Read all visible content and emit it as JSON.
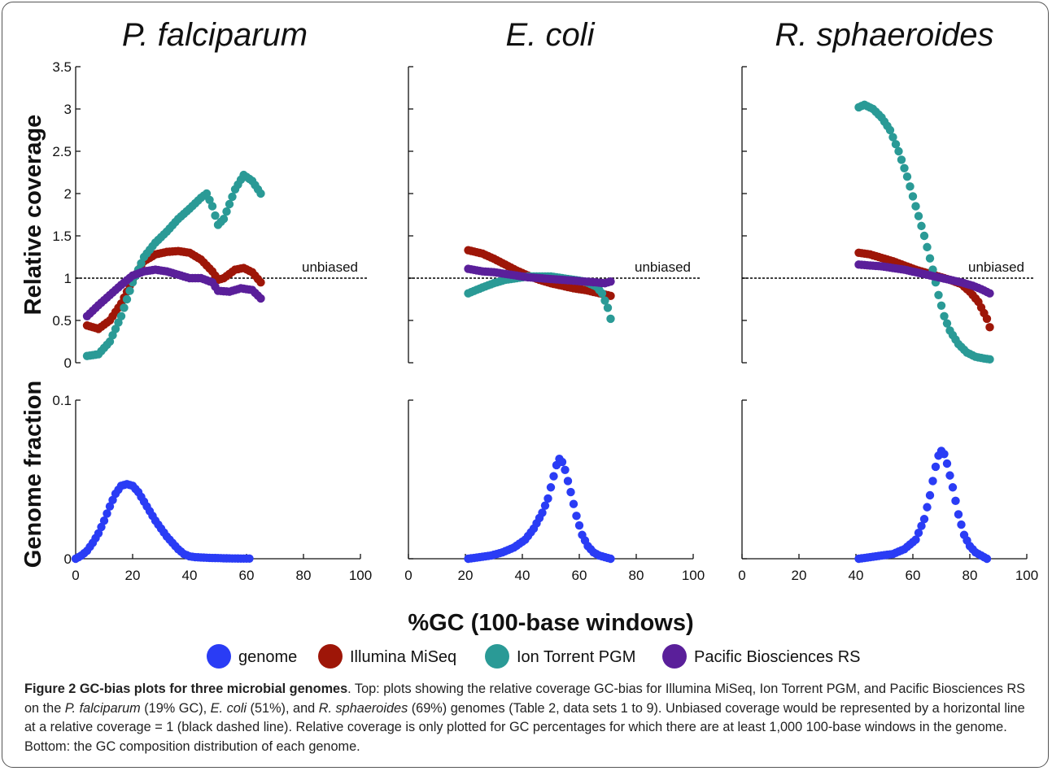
{
  "figure": {
    "panel_titles": [
      "P. falciparum",
      "E. coli",
      "R. sphaeroides"
    ],
    "xlabel": "%GC (100-base windows)",
    "top_ylabel": "Relative coverage",
    "bottom_ylabel": "Genome fraction",
    "unbiased_label": "unbiased",
    "top_yticks": [
      "0",
      "0.5",
      "1",
      "1.5",
      "2",
      "2.5",
      "3",
      "3.5"
    ],
    "bottom_yticks": [
      "0",
      "0.1"
    ],
    "xticks": [
      "0",
      "20",
      "40",
      "60",
      "80",
      "100"
    ],
    "legend": [
      "genome",
      "Illumina MiSeq",
      "Ion Torrent PGM",
      "Pacific Biosciences RS"
    ],
    "colors": {
      "genome": "#2a3cf5",
      "Illumina MiSeq": "#9e1608",
      "Ion Torrent PGM": "#2a9a96",
      "Pacific Biosciences RS": "#5a1f9a",
      "unbiased": "#000000"
    }
  },
  "caption": {
    "title": "Figure 2 GC-bias plots for three microbial genomes",
    "p1": ". Top: plots showing the relative coverage GC-bias for Illumina MiSeq, Ion Torrent PGM, and Pacific Biosciences RS on the ",
    "g1": "P. falciparum",
    "p2": " (19% GC), ",
    "g2": "E. coli",
    "p3": " (51%), and ",
    "g3": "R. sphaeroides",
    "p4": " (69%) genomes (Table 2, data sets 1 to 9). Unbiased coverage would be represented by a horizontal line at a relative coverage = 1 (black dashed line). Relative coverage is only plotted for GC percentages for which there are at least 1,000 100-base windows in the genome. Bottom: the GC composition distribution of each genome."
  },
  "chart_data": [
    {
      "type": "scatter",
      "title": "P. falciparum",
      "xlabel": "",
      "ylabel": "Relative coverage",
      "xlim": [
        0,
        100
      ],
      "ylim": [
        0,
        3.5
      ],
      "reference_line": {
        "y": 1,
        "label": "unbiased"
      },
      "series": [
        {
          "name": "Illumina MiSeq",
          "points": [
            [
              4,
              0.44
            ],
            [
              8,
              0.4
            ],
            [
              12,
              0.5
            ],
            [
              16,
              0.7
            ],
            [
              20,
              0.98
            ],
            [
              24,
              1.2
            ],
            [
              28,
              1.28
            ],
            [
              32,
              1.31
            ],
            [
              36,
              1.32
            ],
            [
              40,
              1.3
            ],
            [
              44,
              1.22
            ],
            [
              48,
              1.08
            ],
            [
              50,
              0.98
            ],
            [
              52,
              1.0
            ],
            [
              56,
              1.1
            ],
            [
              59,
              1.12
            ],
            [
              62,
              1.07
            ],
            [
              65,
              0.95
            ]
          ]
        },
        {
          "name": "Ion Torrent PGM",
          "points": [
            [
              4,
              0.08
            ],
            [
              8,
              0.1
            ],
            [
              12,
              0.25
            ],
            [
              16,
              0.55
            ],
            [
              20,
              0.95
            ],
            [
              24,
              1.25
            ],
            [
              28,
              1.42
            ],
            [
              32,
              1.55
            ],
            [
              36,
              1.7
            ],
            [
              40,
              1.82
            ],
            [
              44,
              1.95
            ],
            [
              46,
              2.0
            ],
            [
              48,
              1.85
            ],
            [
              50,
              1.63
            ],
            [
              52,
              1.7
            ],
            [
              56,
              2.05
            ],
            [
              59,
              2.22
            ],
            [
              62,
              2.15
            ],
            [
              65,
              2.0
            ]
          ]
        },
        {
          "name": "Pacific Biosciences RS",
          "points": [
            [
              4,
              0.55
            ],
            [
              8,
              0.68
            ],
            [
              12,
              0.8
            ],
            [
              16,
              0.92
            ],
            [
              20,
              1.03
            ],
            [
              24,
              1.08
            ],
            [
              28,
              1.1
            ],
            [
              32,
              1.08
            ],
            [
              36,
              1.04
            ],
            [
              40,
              1.0
            ],
            [
              44,
              1.0
            ],
            [
              48,
              0.95
            ],
            [
              50,
              0.85
            ],
            [
              54,
              0.84
            ],
            [
              58,
              0.88
            ],
            [
              62,
              0.86
            ],
            [
              65,
              0.76
            ]
          ]
        }
      ]
    },
    {
      "type": "scatter",
      "title": "E. coli",
      "xlabel": "",
      "ylabel": "",
      "xlim": [
        0,
        100
      ],
      "ylim": [
        0,
        3.5
      ],
      "reference_line": {
        "y": 1,
        "label": "unbiased"
      },
      "series": [
        {
          "name": "Illumina MiSeq",
          "points": [
            [
              21,
              1.33
            ],
            [
              26,
              1.29
            ],
            [
              30,
              1.23
            ],
            [
              34,
              1.16
            ],
            [
              38,
              1.09
            ],
            [
              42,
              1.03
            ],
            [
              46,
              0.98
            ],
            [
              50,
              0.94
            ],
            [
              54,
              0.91
            ],
            [
              58,
              0.88
            ],
            [
              62,
              0.86
            ],
            [
              66,
              0.83
            ],
            [
              71,
              0.79
            ]
          ]
        },
        {
          "name": "Ion Torrent PGM",
          "points": [
            [
              21,
              0.82
            ],
            [
              26,
              0.89
            ],
            [
              30,
              0.94
            ],
            [
              34,
              0.98
            ],
            [
              38,
              1.0
            ],
            [
              42,
              1.02
            ],
            [
              46,
              1.02
            ],
            [
              50,
              1.02
            ],
            [
              54,
              1.0
            ],
            [
              58,
              0.98
            ],
            [
              62,
              0.96
            ],
            [
              66,
              0.9
            ],
            [
              68,
              0.82
            ],
            [
              70,
              0.65
            ],
            [
              71,
              0.52
            ]
          ]
        },
        {
          "name": "Pacific Biosciences RS",
          "points": [
            [
              21,
              1.11
            ],
            [
              26,
              1.08
            ],
            [
              30,
              1.07
            ],
            [
              34,
              1.05
            ],
            [
              38,
              1.03
            ],
            [
              42,
              1.01
            ],
            [
              46,
              1.0
            ],
            [
              50,
              0.99
            ],
            [
              54,
              0.98
            ],
            [
              58,
              0.97
            ],
            [
              62,
              0.96
            ],
            [
              66,
              0.95
            ],
            [
              69,
              0.94
            ],
            [
              71,
              0.96
            ]
          ]
        }
      ]
    },
    {
      "type": "scatter",
      "title": "R. sphaeroides",
      "xlabel": "",
      "ylabel": "",
      "xlim": [
        0,
        100
      ],
      "ylim": [
        0,
        3.5
      ],
      "reference_line": {
        "y": 1,
        "label": "unbiased"
      },
      "series": [
        {
          "name": "Illumina MiSeq",
          "points": [
            [
              41,
              1.3
            ],
            [
              45,
              1.28
            ],
            [
              49,
              1.24
            ],
            [
              53,
              1.2
            ],
            [
              57,
              1.15
            ],
            [
              61,
              1.1
            ],
            [
              65,
              1.06
            ],
            [
              69,
              1.02
            ],
            [
              73,
              0.98
            ],
            [
              77,
              0.93
            ],
            [
              80,
              0.84
            ],
            [
              83,
              0.72
            ],
            [
              86,
              0.52
            ],
            [
              87,
              0.42
            ]
          ]
        },
        {
          "name": "Ion Torrent PGM",
          "points": [
            [
              41,
              3.02
            ],
            [
              43,
              3.05
            ],
            [
              46,
              3.0
            ],
            [
              49,
              2.9
            ],
            [
              52,
              2.75
            ],
            [
              55,
              2.5
            ],
            [
              58,
              2.2
            ],
            [
              61,
              1.85
            ],
            [
              64,
              1.5
            ],
            [
              67,
              1.1
            ],
            [
              69,
              0.8
            ],
            [
              71,
              0.55
            ],
            [
              73,
              0.38
            ],
            [
              76,
              0.22
            ],
            [
              79,
              0.12
            ],
            [
              82,
              0.07
            ],
            [
              85,
              0.05
            ],
            [
              87,
              0.04
            ]
          ]
        },
        {
          "name": "Pacific Biosciences RS",
          "points": [
            [
              41,
              1.16
            ],
            [
              45,
              1.15
            ],
            [
              49,
              1.14
            ],
            [
              53,
              1.12
            ],
            [
              57,
              1.1
            ],
            [
              61,
              1.07
            ],
            [
              65,
              1.04
            ],
            [
              69,
              1.01
            ],
            [
              73,
              0.98
            ],
            [
              77,
              0.95
            ],
            [
              81,
              0.91
            ],
            [
              84,
              0.87
            ],
            [
              87,
              0.82
            ]
          ]
        }
      ]
    },
    {
      "type": "scatter",
      "title": "",
      "xlabel": "%GC (100-base windows)",
      "ylabel": "Genome fraction",
      "xlim": [
        0,
        100
      ],
      "ylim": [
        0,
        0.1
      ],
      "series": [
        {
          "name": "genome",
          "points": [
            [
              0,
              0.0
            ],
            [
              2,
              0.002
            ],
            [
              4,
              0.005
            ],
            [
              6,
              0.01
            ],
            [
              8,
              0.016
            ],
            [
              10,
              0.024
            ],
            [
              12,
              0.033
            ],
            [
              14,
              0.041
            ],
            [
              16,
              0.046
            ],
            [
              18,
              0.047
            ],
            [
              20,
              0.046
            ],
            [
              22,
              0.042
            ],
            [
              24,
              0.036
            ],
            [
              26,
              0.03
            ],
            [
              28,
              0.024
            ],
            [
              30,
              0.019
            ],
            [
              32,
              0.014
            ],
            [
              34,
              0.01
            ],
            [
              36,
              0.006
            ],
            [
              38,
              0.003
            ],
            [
              40,
              0.0015
            ],
            [
              42,
              0.001
            ],
            [
              46,
              0.0006
            ],
            [
              50,
              0.0004
            ],
            [
              54,
              0.0002
            ],
            [
              58,
              0.0001
            ],
            [
              61,
              0.0001
            ]
          ]
        }
      ]
    },
    {
      "type": "scatter",
      "title": "",
      "xlabel": "%GC (100-base windows)",
      "ylabel": "",
      "xlim": [
        0,
        100
      ],
      "ylim": [
        0,
        0.1
      ],
      "series": [
        {
          "name": "genome",
          "points": [
            [
              21,
              0.0
            ],
            [
              25,
              0.001
            ],
            [
              29,
              0.002
            ],
            [
              33,
              0.004
            ],
            [
              37,
              0.007
            ],
            [
              41,
              0.012
            ],
            [
              44,
              0.019
            ],
            [
              47,
              0.029
            ],
            [
              49,
              0.038
            ],
            [
              51,
              0.052
            ],
            [
              52,
              0.059
            ],
            [
              53,
              0.063
            ],
            [
              54,
              0.061
            ],
            [
              55,
              0.056
            ],
            [
              57,
              0.042
            ],
            [
              59,
              0.027
            ],
            [
              61,
              0.015
            ],
            [
              63,
              0.008
            ],
            [
              65,
              0.004
            ],
            [
              67,
              0.002
            ],
            [
              69,
              0.001
            ],
            [
              71,
              0.0
            ]
          ]
        }
      ]
    },
    {
      "type": "scatter",
      "title": "",
      "xlabel": "%GC (100-base windows)",
      "ylabel": "",
      "xlim": [
        0,
        100
      ],
      "ylim": [
        0,
        0.1
      ],
      "series": [
        {
          "name": "genome",
          "points": [
            [
              41,
              0.0
            ],
            [
              45,
              0.001
            ],
            [
              49,
              0.002
            ],
            [
              53,
              0.003
            ],
            [
              57,
              0.006
            ],
            [
              61,
              0.012
            ],
            [
              64,
              0.025
            ],
            [
              66,
              0.04
            ],
            [
              68,
              0.058
            ],
            [
              69,
              0.065
            ],
            [
              70,
              0.068
            ],
            [
              71,
              0.066
            ],
            [
              72,
              0.06
            ],
            [
              74,
              0.045
            ],
            [
              76,
              0.028
            ],
            [
              78,
              0.015
            ],
            [
              80,
              0.008
            ],
            [
              82,
              0.004
            ],
            [
              84,
              0.002
            ],
            [
              86,
              0.0
            ]
          ]
        }
      ]
    }
  ]
}
